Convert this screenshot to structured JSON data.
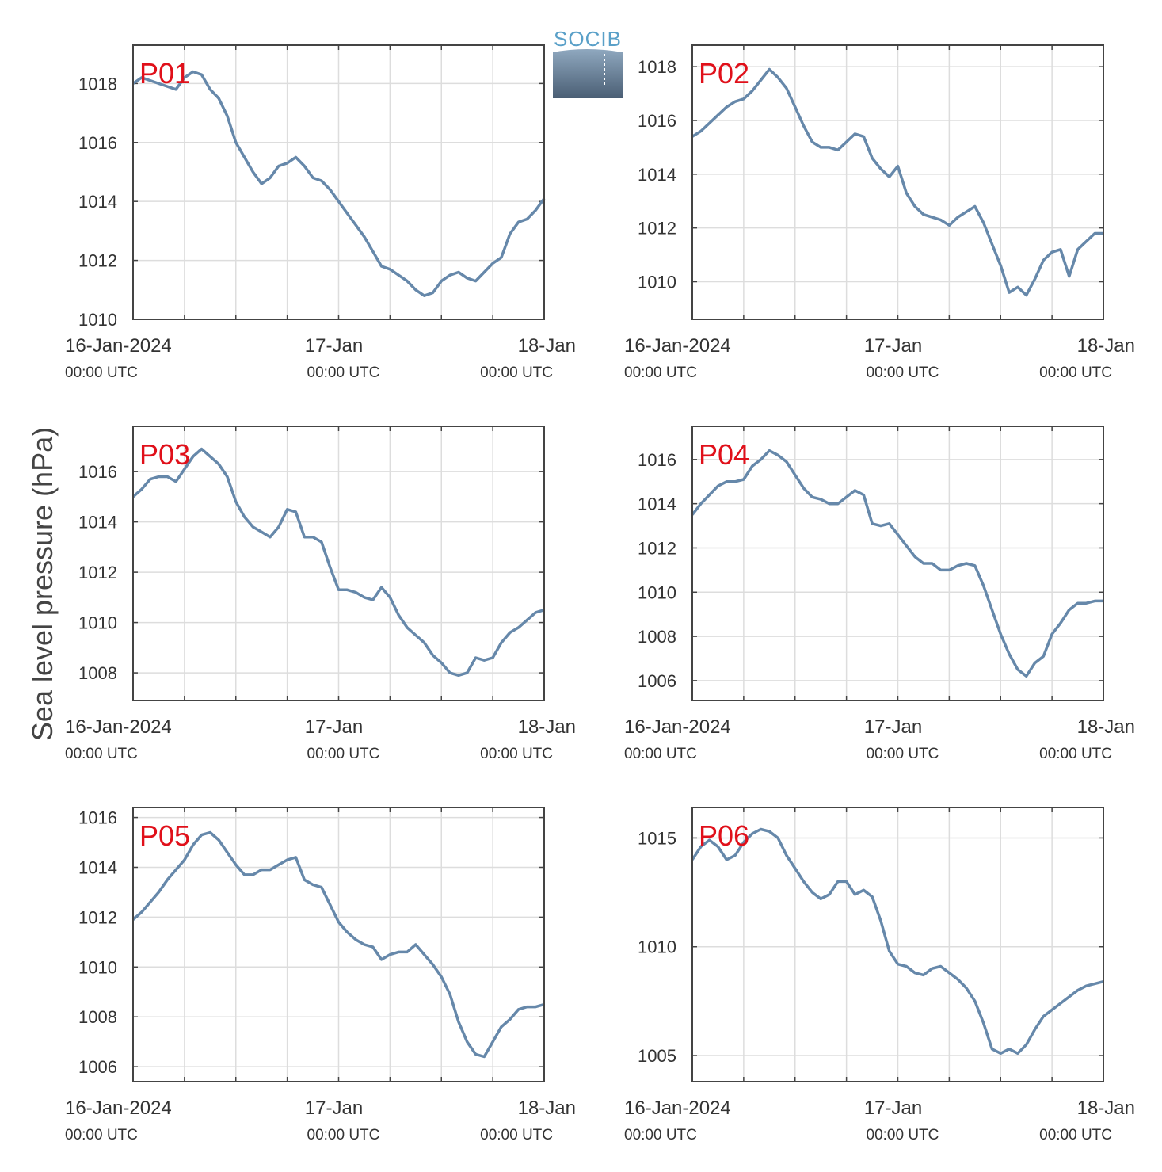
{
  "ylabel": "Sea level pressure (hPa)",
  "logo": {
    "text": "SOCIB"
  },
  "colors": {
    "line": "#6688aa",
    "panel_label": "#e0101a",
    "grid": "#dddddd",
    "axis": "#444444"
  },
  "x_ticks": [
    {
      "x": 0,
      "date": "16-Jan-2024",
      "time": "00:00 UTC"
    },
    {
      "x": 24,
      "date": "17-Jan",
      "time": "00:00 UTC"
    },
    {
      "x": 48,
      "date": "18-Jan",
      "time": "00:00 UTC"
    }
  ],
  "chart_data": [
    {
      "type": "line",
      "label": "P01",
      "xlim": [
        0,
        48
      ],
      "x_unit": "hours since 16-Jan-2024 00:00 UTC",
      "ylim": [
        1010,
        1019.3
      ],
      "yticks": [
        1010,
        1012,
        1014,
        1016,
        1018
      ],
      "grid": true,
      "series": [
        {
          "x": [
            0,
            1,
            2,
            3,
            4,
            5,
            6,
            7,
            8,
            9,
            10,
            11,
            12,
            13,
            14,
            15,
            16,
            17,
            18,
            19,
            20,
            21,
            22,
            23,
            24,
            25,
            26,
            27,
            28,
            29,
            30,
            31,
            32,
            33,
            34,
            35,
            36,
            37,
            38,
            39,
            40,
            41,
            42,
            43,
            44,
            45,
            46,
            47,
            48
          ],
          "values": [
            1018,
            1018.2,
            1018.1,
            1018,
            1017.9,
            1017.8,
            1018.2,
            1018.4,
            1018.3,
            1017.8,
            1017.5,
            1016.9,
            1016,
            1015.5,
            1015,
            1014.6,
            1014.8,
            1015.2,
            1015.3,
            1015.5,
            1015.2,
            1014.8,
            1014.7,
            1014.4,
            1014,
            1013.6,
            1013.2,
            1012.8,
            1012.3,
            1011.8,
            1011.7,
            1011.5,
            1011.3,
            1011,
            1010.8,
            1010.9,
            1011.3,
            1011.5,
            1011.6,
            1011.4,
            1011.3,
            1011.6,
            1011.9,
            1012.1,
            1012.9,
            1013.3,
            1013.4,
            1013.7,
            1014.1
          ]
        }
      ]
    },
    {
      "type": "line",
      "label": "P02",
      "xlim": [
        0,
        48
      ],
      "x_unit": "hours since 16-Jan-2024 00:00 UTC",
      "ylim": [
        1008.6,
        1018.8
      ],
      "yticks": [
        1010,
        1012,
        1014,
        1016,
        1018
      ],
      "grid": true,
      "series": [
        {
          "x": [
            0,
            1,
            2,
            3,
            4,
            5,
            6,
            7,
            8,
            9,
            10,
            11,
            12,
            13,
            14,
            15,
            16,
            17,
            18,
            19,
            20,
            21,
            22,
            23,
            24,
            25,
            26,
            27,
            28,
            29,
            30,
            31,
            32,
            33,
            34,
            35,
            36,
            37,
            38,
            39,
            40,
            41,
            42,
            43,
            44,
            45,
            46,
            47,
            48
          ],
          "values": [
            1015.4,
            1015.6,
            1015.9,
            1016.2,
            1016.5,
            1016.7,
            1016.8,
            1017.1,
            1017.5,
            1017.9,
            1017.6,
            1017.2,
            1016.5,
            1015.8,
            1015.2,
            1015,
            1015,
            1014.9,
            1015.2,
            1015.5,
            1015.4,
            1014.6,
            1014.2,
            1013.9,
            1014.3,
            1013.3,
            1012.8,
            1012.5,
            1012.4,
            1012.3,
            1012.1,
            1012.4,
            1012.6,
            1012.8,
            1012.2,
            1011.4,
            1010.6,
            1009.6,
            1009.8,
            1009.5,
            1010.1,
            1010.8,
            1011.1,
            1011.2,
            1010.2,
            1011.2,
            1011.5,
            1011.8,
            1011.8
          ]
        }
      ]
    },
    {
      "type": "line",
      "label": "P03",
      "xlim": [
        0,
        48
      ],
      "x_unit": "hours since 16-Jan-2024 00:00 UTC",
      "ylim": [
        1006.9,
        1017.8
      ],
      "yticks": [
        1008,
        1010,
        1012,
        1014,
        1016
      ],
      "grid": true,
      "series": [
        {
          "x": [
            0,
            1,
            2,
            3,
            4,
            5,
            6,
            7,
            8,
            9,
            10,
            11,
            12,
            13,
            14,
            15,
            16,
            17,
            18,
            19,
            20,
            21,
            22,
            23,
            24,
            25,
            26,
            27,
            28,
            29,
            30,
            31,
            32,
            33,
            34,
            35,
            36,
            37,
            38,
            39,
            40,
            41,
            42,
            43,
            44,
            45,
            46,
            47,
            48
          ],
          "values": [
            1015,
            1015.3,
            1015.7,
            1015.8,
            1015.8,
            1015.6,
            1016.1,
            1016.6,
            1016.9,
            1016.6,
            1016.3,
            1015.8,
            1014.8,
            1014.2,
            1013.8,
            1013.6,
            1013.4,
            1013.8,
            1014.5,
            1014.4,
            1013.4,
            1013.4,
            1013.2,
            1012.2,
            1011.3,
            1011.3,
            1011.2,
            1011,
            1010.9,
            1011.4,
            1011,
            1010.3,
            1009.8,
            1009.5,
            1009.2,
            1008.7,
            1008.4,
            1008,
            1007.9,
            1008,
            1008.6,
            1008.5,
            1008.6,
            1009.2,
            1009.6,
            1009.8,
            1010.1,
            1010.4,
            1010.5
          ]
        }
      ]
    },
    {
      "type": "line",
      "label": "P04",
      "xlim": [
        0,
        48
      ],
      "x_unit": "hours since 16-Jan-2024 00:00 UTC",
      "ylim": [
        1005.1,
        1017.5
      ],
      "yticks": [
        1006,
        1008,
        1010,
        1012,
        1014,
        1016
      ],
      "grid": true,
      "series": [
        {
          "x": [
            0,
            1,
            2,
            3,
            4,
            5,
            6,
            7,
            8,
            9,
            10,
            11,
            12,
            13,
            14,
            15,
            16,
            17,
            18,
            19,
            20,
            21,
            22,
            23,
            24,
            25,
            26,
            27,
            28,
            29,
            30,
            31,
            32,
            33,
            34,
            35,
            36,
            37,
            38,
            39,
            40,
            41,
            42,
            43,
            44,
            45,
            46,
            47,
            48
          ],
          "values": [
            1013.5,
            1014,
            1014.4,
            1014.8,
            1015,
            1015,
            1015.1,
            1015.7,
            1016,
            1016.4,
            1016.2,
            1015.9,
            1015.3,
            1014.7,
            1014.3,
            1014.2,
            1014,
            1014,
            1014.3,
            1014.6,
            1014.4,
            1013.1,
            1013,
            1013.1,
            1012.6,
            1012.1,
            1011.6,
            1011.3,
            1011.3,
            1011,
            1011,
            1011.2,
            1011.3,
            1011.2,
            1010.3,
            1009.2,
            1008.1,
            1007.2,
            1006.5,
            1006.2,
            1006.8,
            1007.1,
            1008.1,
            1008.6,
            1009.2,
            1009.5,
            1009.5,
            1009.6,
            1009.6
          ]
        }
      ]
    },
    {
      "type": "line",
      "label": "P05",
      "xlim": [
        0,
        48
      ],
      "x_unit": "hours since 16-Jan-2024 00:00 UTC",
      "ylim": [
        1005.4,
        1016.4
      ],
      "yticks": [
        1006,
        1008,
        1010,
        1012,
        1014,
        1016
      ],
      "grid": true,
      "series": [
        {
          "x": [
            0,
            1,
            2,
            3,
            4,
            5,
            6,
            7,
            8,
            9,
            10,
            11,
            12,
            13,
            14,
            15,
            16,
            17,
            18,
            19,
            20,
            21,
            22,
            23,
            24,
            25,
            26,
            27,
            28,
            29,
            30,
            31,
            32,
            33,
            34,
            35,
            36,
            37,
            38,
            39,
            40,
            41,
            42,
            43,
            44,
            45,
            46,
            47,
            48
          ],
          "values": [
            1011.9,
            1012.2,
            1012.6,
            1013,
            1013.5,
            1013.9,
            1014.3,
            1014.9,
            1015.3,
            1015.4,
            1015.1,
            1014.6,
            1014.1,
            1013.7,
            1013.7,
            1013.9,
            1013.9,
            1014.1,
            1014.3,
            1014.4,
            1013.5,
            1013.3,
            1013.2,
            1012.5,
            1011.8,
            1011.4,
            1011.1,
            1010.9,
            1010.8,
            1010.3,
            1010.5,
            1010.6,
            1010.6,
            1010.9,
            1010.5,
            1010.1,
            1009.6,
            1008.9,
            1007.8,
            1007,
            1006.5,
            1006.4,
            1007,
            1007.6,
            1007.9,
            1008.3,
            1008.4,
            1008.4,
            1008.5
          ]
        }
      ]
    },
    {
      "type": "line",
      "label": "P06",
      "xlim": [
        0,
        48
      ],
      "x_unit": "hours since 16-Jan-2024 00:00 UTC",
      "ylim": [
        1003.8,
        1016.4
      ],
      "yticks": [
        1005,
        1010,
        1015
      ],
      "grid": true,
      "series": [
        {
          "x": [
            0,
            1,
            2,
            3,
            4,
            5,
            6,
            7,
            8,
            9,
            10,
            11,
            12,
            13,
            14,
            15,
            16,
            17,
            18,
            19,
            20,
            21,
            22,
            23,
            24,
            25,
            26,
            27,
            28,
            29,
            30,
            31,
            32,
            33,
            34,
            35,
            36,
            37,
            38,
            39,
            40,
            41,
            42,
            43,
            44,
            45,
            46,
            47,
            48
          ],
          "values": [
            1014,
            1014.6,
            1014.9,
            1014.6,
            1014,
            1014.2,
            1014.8,
            1015.2,
            1015.4,
            1015.3,
            1015,
            1014.2,
            1013.6,
            1013,
            1012.5,
            1012.2,
            1012.4,
            1013,
            1013,
            1012.4,
            1012.6,
            1012.3,
            1011.2,
            1009.8,
            1009.2,
            1009.1,
            1008.8,
            1008.7,
            1009,
            1009.1,
            1008.8,
            1008.5,
            1008.1,
            1007.5,
            1006.5,
            1005.3,
            1005.1,
            1005.3,
            1005.1,
            1005.5,
            1006.2,
            1006.8,
            1007.1,
            1007.4,
            1007.7,
            1008,
            1008.2,
            1008.3,
            1008.4
          ]
        }
      ]
    }
  ]
}
